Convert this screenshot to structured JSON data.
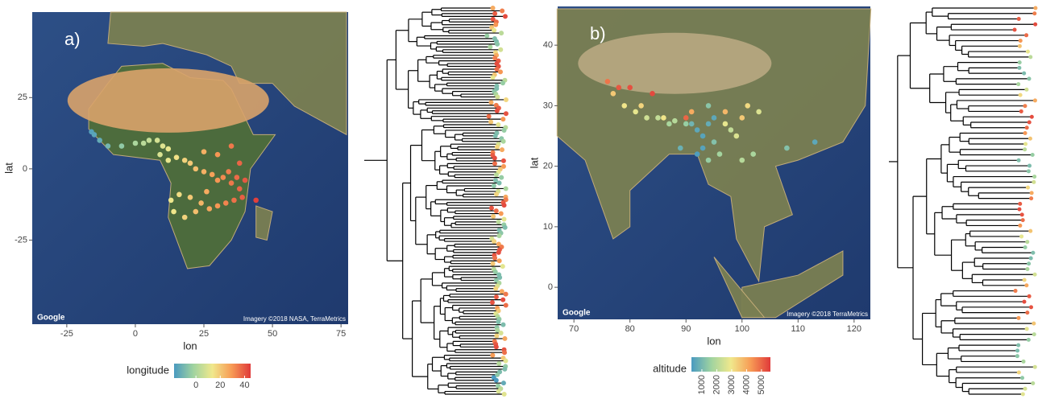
{
  "chart_data": [
    {
      "type": "scatter",
      "label": "a)",
      "xlabel": "lon",
      "ylabel": "lat",
      "xlim": [
        -37.6,
        77.6
      ],
      "ylim": [
        -54.5,
        55
      ],
      "xticks": [
        -25,
        0,
        25,
        50,
        75
      ],
      "yticks": [
        -25,
        0,
        25
      ],
      "x": [
        -16,
        -15,
        -13,
        -10,
        -5,
        0,
        3,
        5,
        8,
        10,
        12,
        9,
        12,
        15,
        18,
        20,
        22,
        25,
        28,
        30,
        32,
        35,
        37,
        38,
        39,
        36,
        33,
        30,
        27,
        24,
        20,
        16,
        13,
        14,
        18,
        22,
        26,
        34,
        38,
        44,
        30,
        35,
        25,
        40
      ],
      "y": [
        13,
        12,
        10,
        8,
        8,
        9,
        9,
        10,
        10,
        8,
        7,
        5,
        3,
        4,
        3,
        2,
        0,
        -1,
        -2,
        -4,
        -3,
        -5,
        -3,
        -7,
        -10,
        -11,
        -12,
        -13,
        -14,
        -12,
        -10,
        -9,
        -11,
        -15,
        -17,
        -15,
        -8,
        -1,
        2,
        -11,
        5,
        8,
        6,
        -4
      ],
      "colormap": [
        "#4a9ac0",
        "#9fd3a0",
        "#f0e88c",
        "#f79b55",
        "#e03a3a"
      ],
      "colorbar": {
        "title": "longitude",
        "lim": [
          -18,
          45
        ],
        "ticks": [
          0,
          20,
          40
        ]
      },
      "attribution": [
        "Google",
        "Imagery ©2018 NASA, TerraMetrics"
      ]
    },
    {
      "type": "scatter",
      "label": "b)",
      "xlabel": "lon",
      "ylabel": "lat",
      "xlim": [
        67.1,
        122.9
      ],
      "ylim": [
        -5.3,
        46.4
      ],
      "xticks": [
        70,
        80,
        90,
        100,
        110,
        120
      ],
      "yticks": [
        0,
        10,
        20,
        30,
        40
      ],
      "x": [
        76,
        78,
        80,
        84,
        77,
        79,
        81,
        83,
        85,
        87,
        88,
        90,
        91,
        92,
        93,
        94,
        95,
        93,
        92,
        94,
        95,
        97,
        98,
        99,
        100,
        97,
        101,
        103,
        102,
        100,
        108,
        113,
        91,
        90,
        86,
        82,
        89,
        94,
        96
      ],
      "y": [
        34,
        33,
        33,
        32,
        32,
        30,
        29,
        28,
        28,
        27,
        27.5,
        27,
        27,
        26,
        25,
        27,
        28,
        23,
        22,
        21,
        24,
        27,
        26,
        25,
        28,
        29,
        30,
        29,
        22,
        21,
        23,
        24,
        29,
        28,
        28,
        30,
        23,
        30,
        22
      ],
      "color_values": [
        4800,
        5200,
        5300,
        5400,
        3500,
        3000,
        2800,
        2400,
        2200,
        1800,
        2000,
        1500,
        900,
        600,
        500,
        700,
        600,
        500,
        400,
        1500,
        1200,
        2800,
        2200,
        2600,
        3500,
        3800,
        3200,
        2600,
        1800,
        2000,
        1200,
        600,
        4000,
        5000,
        3000,
        3300,
        800,
        1300,
        1700
      ],
      "colormap": [
        "#4a9ac0",
        "#9fd3a0",
        "#f0e88c",
        "#f79b55",
        "#e03a3a"
      ],
      "colorbar": {
        "title": "altitude",
        "lim": [
          300,
          5600
        ],
        "ticks": [
          1000,
          2000,
          3000,
          4000,
          5000
        ]
      },
      "attribution": [
        "Google",
        "Imagery ©2018 TerraMetrics"
      ]
    }
  ]
}
